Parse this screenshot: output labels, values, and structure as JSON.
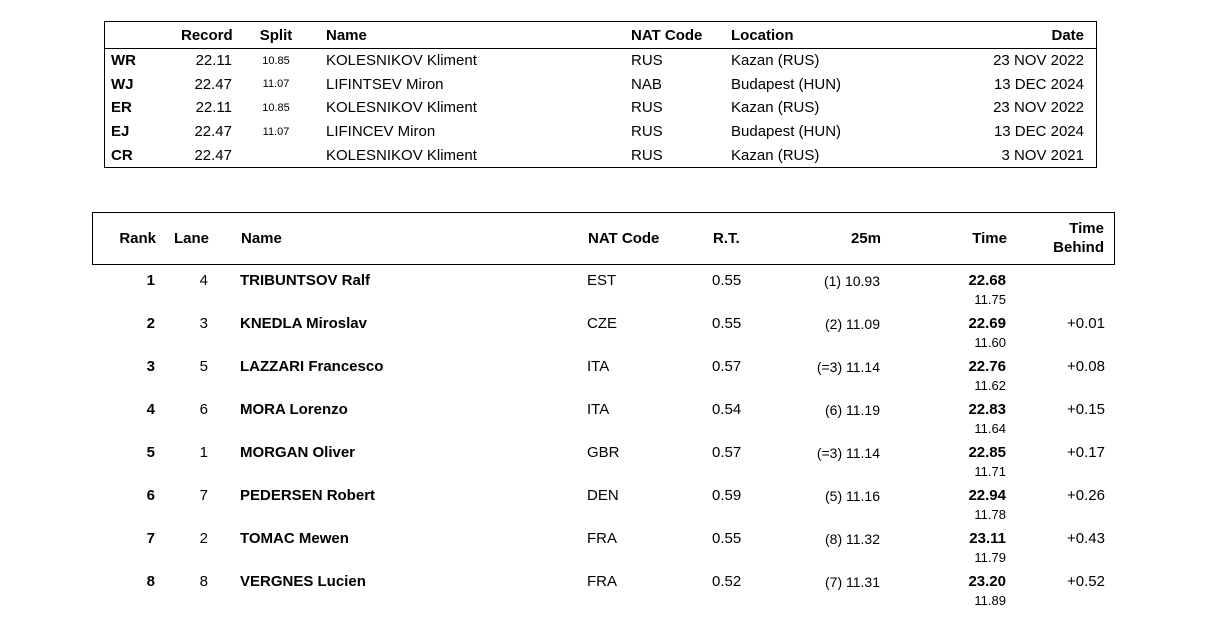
{
  "records_table": {
    "headers": {
      "record": "Record",
      "split": "Split",
      "name": "Name",
      "nat": "NAT Code",
      "location": "Location",
      "date": "Date"
    },
    "rows": [
      {
        "label": "WR",
        "record": "22.11",
        "split": "10.85",
        "name": "KOLESNIKOV Kliment",
        "nat": "RUS",
        "location": "Kazan (RUS)",
        "date": "23 NOV 2022"
      },
      {
        "label": "WJ",
        "record": "22.47",
        "split": "11.07",
        "name": "LIFINTSEV Miron",
        "nat": "NAB",
        "location": "Budapest (HUN)",
        "date": "13 DEC 2024"
      },
      {
        "label": "ER",
        "record": "22.11",
        "split": "10.85",
        "name": "KOLESNIKOV Kliment",
        "nat": "RUS",
        "location": "Kazan (RUS)",
        "date": "23 NOV 2022"
      },
      {
        "label": "EJ",
        "record": "22.47",
        "split": "11.07",
        "name": "LIFINCEV Miron",
        "nat": "RUS",
        "location": "Budapest (HUN)",
        "date": "13 DEC 2024"
      },
      {
        "label": "CR",
        "record": "22.47",
        "split": "",
        "name": "KOLESNIKOV Kliment",
        "nat": "RUS",
        "location": "Kazan (RUS)",
        "date": "3 NOV 2021"
      }
    ]
  },
  "results_table": {
    "headers": {
      "rank": "Rank",
      "lane": "Lane",
      "name": "Name",
      "nat": "NAT Code",
      "rt": "R.T.",
      "m25": "25m",
      "time": "Time",
      "behind_line1": "Time",
      "behind_line2": "Behind"
    },
    "rows": [
      {
        "rank": "1",
        "lane": "4",
        "name": "TRIBUNTSOV Ralf",
        "nat": "EST",
        "rt": "0.55",
        "m25": "(1) 10.93",
        "time": "22.68",
        "split": "11.75",
        "behind": ""
      },
      {
        "rank": "2",
        "lane": "3",
        "name": "KNEDLA Miroslav",
        "nat": "CZE",
        "rt": "0.55",
        "m25": "(2) 11.09",
        "time": "22.69",
        "split": "11.60",
        "behind": "+0.01"
      },
      {
        "rank": "3",
        "lane": "5",
        "name": "LAZZARI Francesco",
        "nat": "ITA",
        "rt": "0.57",
        "m25": "(=3) 11.14",
        "time": "22.76",
        "split": "11.62",
        "behind": "+0.08"
      },
      {
        "rank": "4",
        "lane": "6",
        "name": "MORA Lorenzo",
        "nat": "ITA",
        "rt": "0.54",
        "m25": "(6) 11.19",
        "time": "22.83",
        "split": "11.64",
        "behind": "+0.15"
      },
      {
        "rank": "5",
        "lane": "1",
        "name": "MORGAN Oliver",
        "nat": "GBR",
        "rt": "0.57",
        "m25": "(=3) 11.14",
        "time": "22.85",
        "split": "11.71",
        "behind": "+0.17"
      },
      {
        "rank": "6",
        "lane": "7",
        "name": "PEDERSEN Robert",
        "nat": "DEN",
        "rt": "0.59",
        "m25": "(5) 11.16",
        "time": "22.94",
        "split": "11.78",
        "behind": "+0.26"
      },
      {
        "rank": "7",
        "lane": "2",
        "name": "TOMAC Mewen",
        "nat": "FRA",
        "rt": "0.55",
        "m25": "(8) 11.32",
        "time": "23.11",
        "split": "11.79",
        "behind": "+0.43"
      },
      {
        "rank": "8",
        "lane": "8",
        "name": "VERGNES Lucien",
        "nat": "FRA",
        "rt": "0.52",
        "m25": "(7) 11.31",
        "time": "23.20",
        "split": "11.89",
        "behind": "+0.52"
      }
    ]
  }
}
